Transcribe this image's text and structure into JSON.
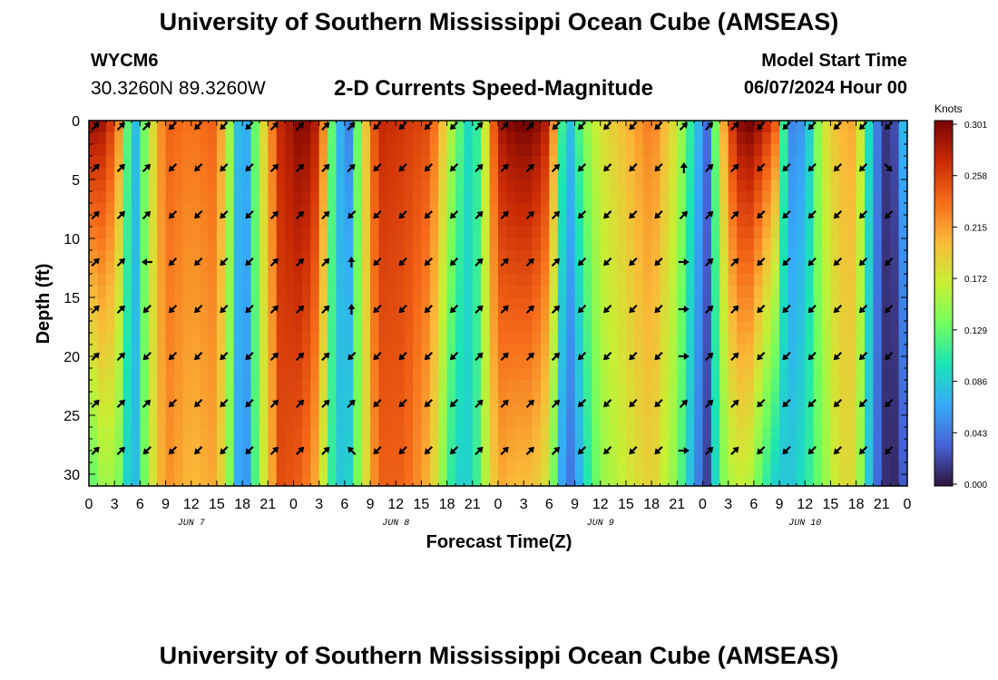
{
  "header": {
    "title": "University of Southern Mississippi Ocean Cube (AMSEAS)",
    "station": "WYCM6",
    "coords": "30.3260N  89.3260W",
    "subtitle": "2-D Currents Speed-Magnitude",
    "model_start_label": "Model Start Time",
    "model_start_time": "06/07/2024 Hour 00"
  },
  "footer": {
    "title": "University of Southern Mississippi Ocean Cube (AMSEAS)"
  },
  "chart_data": {
    "type": "heatmap",
    "xlabel": "Forecast Time(Z)",
    "ylabel": "Depth (ft)",
    "colorbar_label": "Knots",
    "xlim": [
      0,
      96
    ],
    "ylim": [
      0,
      31
    ],
    "x_ticks": [
      0,
      3,
      6,
      9,
      12,
      15,
      18,
      21,
      24,
      27,
      30,
      33,
      36,
      39,
      42,
      45,
      48,
      51,
      54,
      57,
      60,
      63,
      66,
      69,
      72,
      75,
      78,
      81,
      84,
      87,
      90,
      93,
      96
    ],
    "x_tick_labels": [
      "0",
      "3",
      "6",
      "9",
      "12",
      "15",
      "18",
      "21",
      "0",
      "3",
      "6",
      "9",
      "12",
      "15",
      "18",
      "21",
      "0",
      "3",
      "6",
      "9",
      "12",
      "15",
      "18",
      "21",
      "0",
      "3",
      "6",
      "9",
      "12",
      "15",
      "18",
      "21",
      "0"
    ],
    "day_labels": [
      {
        "text": "JUN 7",
        "x": 12
      },
      {
        "text": "JUN 8",
        "x": 36
      },
      {
        "text": "JUN 9",
        "x": 60
      },
      {
        "text": "JUN 10",
        "x": 84
      }
    ],
    "y_ticks": [
      0,
      5,
      10,
      15,
      20,
      25,
      30
    ],
    "y_tick_labels": [
      "0",
      "5",
      "10",
      "15",
      "20",
      "25",
      "30"
    ],
    "colorbar_ticks": [
      "0.301",
      "0.258",
      "0.215",
      "0.172",
      "0.129",
      "0.086",
      "0.043",
      "0.000"
    ],
    "vmin": 0.0,
    "vmax": 0.301,
    "colors": [
      "#30123b",
      "#4662d7",
      "#36aaf9",
      "#1ae4b6",
      "#72fe5e",
      "#c8ef34",
      "#faba39",
      "#f66b19",
      "#ca2a04",
      "#7a0403"
    ],
    "speed_profile": {
      "hours": [
        0,
        2,
        4,
        5,
        7,
        9,
        12,
        15,
        16.5,
        18,
        20,
        22.5,
        25,
        27,
        29,
        30.5,
        32,
        34,
        37,
        40,
        43,
        45,
        46.5,
        48,
        50,
        52,
        54,
        56,
        57.5,
        59,
        60.5,
        63,
        66,
        69,
        71,
        72.5,
        74,
        76,
        77.5,
        79,
        80.5,
        82,
        84,
        86,
        88,
        90,
        92,
        94,
        96
      ],
      "surface": [
        0.29,
        0.28,
        0.2,
        0.05,
        0.16,
        0.24,
        0.23,
        0.24,
        0.15,
        0.04,
        0.16,
        0.27,
        0.3,
        0.27,
        0.08,
        0.05,
        0.17,
        0.27,
        0.26,
        0.25,
        0.14,
        0.08,
        0.17,
        0.28,
        0.3,
        0.3,
        0.27,
        0.06,
        0.12,
        0.16,
        0.18,
        0.2,
        0.23,
        0.17,
        0.09,
        0.04,
        0.18,
        0.29,
        0.3,
        0.28,
        0.24,
        0.05,
        0.06,
        0.17,
        0.2,
        0.21,
        0.06,
        0.0,
        0.1
      ],
      "bottom": [
        0.12,
        0.16,
        0.13,
        0.05,
        0.16,
        0.22,
        0.2,
        0.21,
        0.14,
        0.03,
        0.15,
        0.25,
        0.24,
        0.2,
        0.08,
        0.09,
        0.16,
        0.24,
        0.24,
        0.2,
        0.09,
        0.09,
        0.16,
        0.21,
        0.2,
        0.2,
        0.17,
        0.03,
        0.07,
        0.12,
        0.15,
        0.17,
        0.19,
        0.14,
        0.06,
        0.02,
        0.13,
        0.17,
        0.16,
        0.12,
        0.09,
        0.08,
        0.1,
        0.14,
        0.18,
        0.18,
        0.05,
        0.0,
        0.04
      ]
    },
    "vector_rows_depth_ft": [
      0,
      4,
      8,
      12,
      16,
      20,
      24,
      28
    ],
    "vectors": [
      {
        "hour": 0,
        "dir": [
          "ne",
          "ne",
          "ne",
          "ne",
          "ne",
          "ne",
          "ne",
          "ne"
        ]
      },
      {
        "hour": 3,
        "dir": [
          "ne",
          "ne",
          "ne",
          "ne",
          "ne",
          "ne",
          "ne",
          "ne"
        ]
      },
      {
        "hour": 6,
        "dir": [
          "ne",
          "ne",
          "ne",
          "w",
          "sw",
          "sw",
          "ne",
          "sw"
        ]
      },
      {
        "hour": 9,
        "dir": [
          "sw",
          "sw",
          "sw",
          "sw",
          "sw",
          "sw",
          "sw",
          "sw"
        ]
      },
      {
        "hour": 12,
        "dir": [
          "sw",
          "sw",
          "sw",
          "sw",
          "sw",
          "sw",
          "sw",
          "sw"
        ]
      },
      {
        "hour": 15,
        "dir": [
          "sw",
          "sw",
          "sw",
          "sw",
          "sw",
          "sw",
          "sw",
          "sw"
        ]
      },
      {
        "hour": 18,
        "dir": [
          "sw",
          "sw",
          "sw",
          "sw",
          "sw",
          "sw",
          "sw",
          "sw"
        ]
      },
      {
        "hour": 21,
        "dir": [
          "ne",
          "ne",
          "ne",
          "ne",
          "ne",
          "ne",
          "ne",
          "ne"
        ]
      },
      {
        "hour": 24,
        "dir": [
          "ne",
          "ne",
          "ne",
          "ne",
          "ne",
          "ne",
          "ne",
          "ne"
        ]
      },
      {
        "hour": 27,
        "dir": [
          "ne",
          "ne",
          "ne",
          "ne",
          "ne",
          "ne",
          "ne",
          "ne"
        ]
      },
      {
        "hour": 30,
        "dir": [
          "ne",
          "ne",
          "sw",
          "n",
          "n",
          "sw",
          "ne",
          "nw"
        ]
      },
      {
        "hour": 33,
        "dir": [
          "sw",
          "sw",
          "sw",
          "sw",
          "sw",
          "sw",
          "sw",
          "sw"
        ]
      },
      {
        "hour": 36,
        "dir": [
          "sw",
          "sw",
          "sw",
          "sw",
          "sw",
          "sw",
          "sw",
          "sw"
        ]
      },
      {
        "hour": 39,
        "dir": [
          "sw",
          "sw",
          "sw",
          "sw",
          "sw",
          "sw",
          "sw",
          "sw"
        ]
      },
      {
        "hour": 42,
        "dir": [
          "sw",
          "sw",
          "sw",
          "sw",
          "sw",
          "sw",
          "sw",
          "sw"
        ]
      },
      {
        "hour": 45,
        "dir": [
          "ne",
          "ne",
          "ne",
          "ne",
          "ne",
          "ne",
          "ne",
          "ne"
        ]
      },
      {
        "hour": 48,
        "dir": [
          "ne",
          "ne",
          "ne",
          "ne",
          "ne",
          "ne",
          "ne",
          "ne"
        ]
      },
      {
        "hour": 51,
        "dir": [
          "ne",
          "ne",
          "ne",
          "ne",
          "ne",
          "ne",
          "ne",
          "ne"
        ]
      },
      {
        "hour": 54,
        "dir": [
          "sw",
          "ne",
          "ne",
          "ne",
          "ne",
          "ne",
          "ne",
          "ne"
        ]
      },
      {
        "hour": 57,
        "dir": [
          "sw",
          "sw",
          "sw",
          "sw",
          "sw",
          "sw",
          "sw",
          "sw"
        ]
      },
      {
        "hour": 60,
        "dir": [
          "sw",
          "sw",
          "sw",
          "sw",
          "sw",
          "sw",
          "sw",
          "sw"
        ]
      },
      {
        "hour": 63,
        "dir": [
          "sw",
          "sw",
          "sw",
          "sw",
          "sw",
          "sw",
          "sw",
          "sw"
        ]
      },
      {
        "hour": 66,
        "dir": [
          "sw",
          "sw",
          "sw",
          "sw",
          "sw",
          "sw",
          "sw",
          "sw"
        ]
      },
      {
        "hour": 69,
        "dir": [
          "ne",
          "n",
          "ne",
          "e",
          "e",
          "e",
          "ne",
          "e"
        ]
      },
      {
        "hour": 72,
        "dir": [
          "ne",
          "ne",
          "ne",
          "ne",
          "ne",
          "ne",
          "ne",
          "ne"
        ]
      },
      {
        "hour": 75,
        "dir": [
          "ne",
          "ne",
          "ne",
          "ne",
          "ne",
          "ne",
          "ne",
          "ne"
        ]
      },
      {
        "hour": 78,
        "dir": [
          "sw",
          "sw",
          "sw",
          "sw",
          "sw",
          "sw",
          "sw",
          "sw"
        ]
      },
      {
        "hour": 81,
        "dir": [
          "sw",
          "sw",
          "sw",
          "sw",
          "sw",
          "sw",
          "sw",
          "sw"
        ]
      },
      {
        "hour": 84,
        "dir": [
          "sw",
          "sw",
          "sw",
          "sw",
          "sw",
          "sw",
          "sw",
          "sw"
        ]
      },
      {
        "hour": 87,
        "dir": [
          "sw",
          "sw",
          "sw",
          "sw",
          "sw",
          "sw",
          "sw",
          "sw"
        ]
      },
      {
        "hour": 90,
        "dir": [
          "sw",
          "sw",
          "sw",
          "sw",
          "sw",
          "sw",
          "sw",
          "sw"
        ]
      },
      {
        "hour": 93,
        "dir": [
          "sw",
          "se",
          "sw",
          "sw",
          "sw",
          "sw",
          "sw",
          "sw"
        ]
      }
    ]
  }
}
